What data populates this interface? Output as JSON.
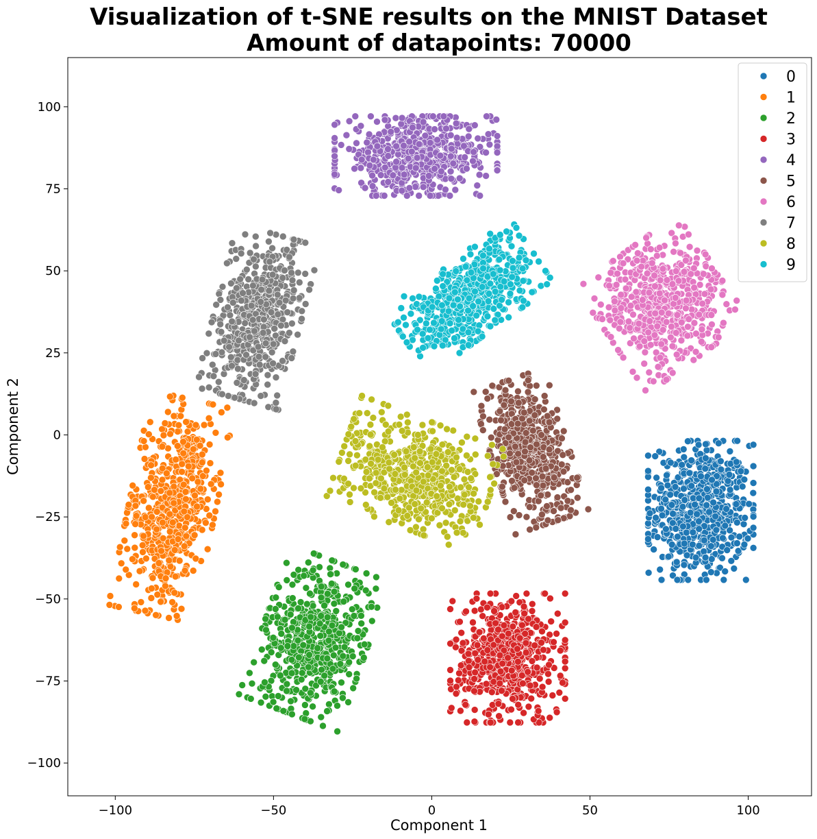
{
  "chart_data": {
    "type": "scatter",
    "title": "Visualization of t-SNE results on the MNIST Dataset",
    "subtitle": "Amount of datapoints: 70000",
    "xlabel": "Component 1",
    "ylabel": "Component 2",
    "xlim": [
      -115,
      120
    ],
    "ylim": [
      -110,
      115
    ],
    "xticks": [
      -100,
      -50,
      0,
      50,
      100
    ],
    "xtick_labels": [
      "−100",
      "−50",
      "0",
      "50",
      "100"
    ],
    "yticks": [
      -100,
      -75,
      -50,
      -25,
      0,
      25,
      50,
      75,
      100
    ],
    "ytick_labels": [
      "−100",
      "−75",
      "−50",
      "−25",
      "0",
      "25",
      "50",
      "75",
      "100"
    ],
    "grid": false,
    "legend_position": "top-right",
    "series": [
      {
        "name": "0",
        "color": "#1f77b4",
        "center": [
          85,
          -23
        ],
        "spread": [
          11,
          14
        ],
        "rotation": 0,
        "n": 650
      },
      {
        "name": "1",
        "color": "#ff7f0e",
        "center": [
          -82,
          -22
        ],
        "spread": [
          9,
          22
        ],
        "rotation": -12,
        "n": 600
      },
      {
        "name": "2",
        "color": "#2ca02c",
        "center": [
          -37,
          -62
        ],
        "spread": [
          11,
          16
        ],
        "rotation": -20,
        "n": 600
      },
      {
        "name": "3",
        "color": "#d62728",
        "center": [
          24,
          -68
        ],
        "spread": [
          12,
          13
        ],
        "rotation": 0,
        "n": 600
      },
      {
        "name": "4",
        "color": "#9467bd",
        "center": [
          -5,
          85
        ],
        "spread": [
          17,
          8
        ],
        "rotation": 0,
        "n": 600
      },
      {
        "name": "5",
        "color": "#8c564b",
        "center": [
          31,
          -5
        ],
        "spread": [
          8,
          15
        ],
        "rotation": 18,
        "n": 550
      },
      {
        "name": "6",
        "color": "#e377c2",
        "center": [
          73,
          40
        ],
        "spread": [
          13,
          13
        ],
        "rotation": 35,
        "n": 600
      },
      {
        "name": "7",
        "color": "#7f7f7f",
        "center": [
          -55,
          36
        ],
        "spread": [
          9,
          17
        ],
        "rotation": -15,
        "n": 550
      },
      {
        "name": "8",
        "color": "#bcbd22",
        "center": [
          -5,
          -12
        ],
        "spread": [
          16,
          11
        ],
        "rotation": -20,
        "n": 600
      },
      {
        "name": "9",
        "color": "#17becf",
        "center": [
          12,
          42
        ],
        "spread": [
          16,
          8
        ],
        "rotation": 35,
        "n": 600
      }
    ]
  }
}
